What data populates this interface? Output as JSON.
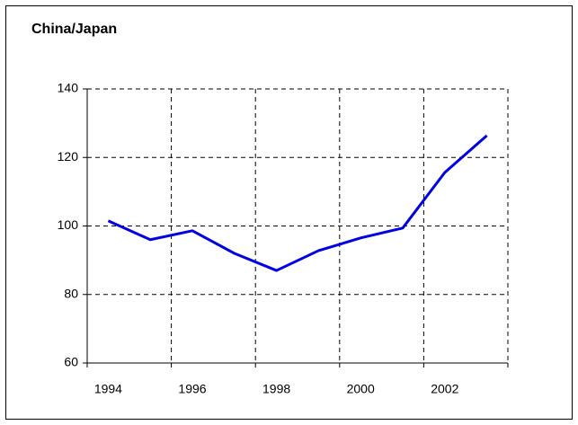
{
  "chart_data": {
    "type": "line",
    "title": "China/Japan",
    "categories": [
      "1994",
      null,
      "1996",
      null,
      "1998",
      null,
      "2000",
      null,
      "2002",
      null
    ],
    "series": [
      {
        "name": "China/Japan",
        "color": "#0000e0",
        "values": [
          101.5,
          96,
          98.6,
          92,
          87,
          92.8,
          96.5,
          99.4,
          115.6,
          126.4
        ]
      }
    ],
    "ylim": [
      60,
      140
    ],
    "yticks": [
      60,
      80,
      100,
      120,
      140
    ],
    "grid": true
  }
}
